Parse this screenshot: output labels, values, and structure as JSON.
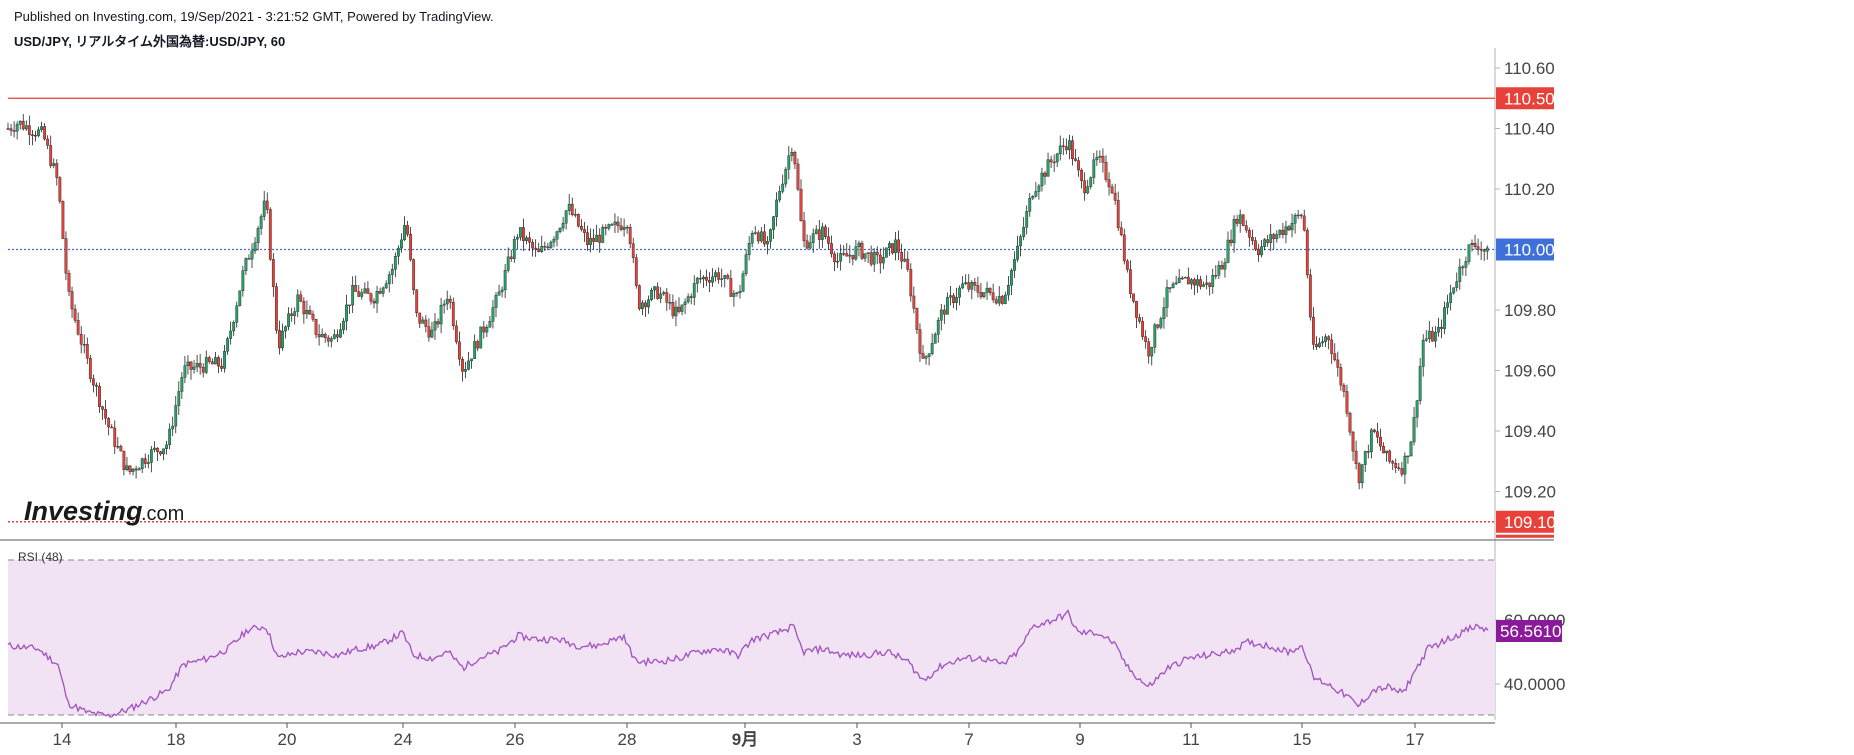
{
  "header": {
    "published": "Published on Investing.com, 19/Sep/2021 - 3:21:52 GMT, Powered by TradingView.",
    "symbol": "USD/JPY, リアルタイム外国為替:USD/JPY, 60"
  },
  "logo": {
    "main": "Investing",
    "suffix": ".com"
  },
  "colors": {
    "up": "#26a269",
    "down": "#e8413a",
    "wick": "#222222",
    "resistance": "#e8413a",
    "support": "#e8413a",
    "current": "#3f6fd8",
    "rsi_line": "#a050c0",
    "rsi_band": "#f1e3f3",
    "rsi_badge": "#8a1a9a"
  },
  "chart_data": {
    "type": "candlestick",
    "symbol": "USD/JPY",
    "interval": "60",
    "y_axis": {
      "ticks": [
        "110.60",
        "110.40",
        "110.20",
        "110.00",
        "109.80",
        "109.60",
        "109.40",
        "109.20"
      ],
      "range": [
        109.06,
        110.68
      ]
    },
    "x_axis": {
      "labels": [
        "14",
        "18",
        "20",
        "24",
        "26",
        "28",
        "9月",
        "3",
        "7",
        "9",
        "11",
        "15",
        "17"
      ]
    },
    "horizontal_lines": [
      {
        "label": "110.50",
        "value": 110.5,
        "style": "solid"
      },
      {
        "label": "109.10",
        "value": 109.1,
        "style": "dotted"
      }
    ],
    "current_price": {
      "label": "110.00",
      "value": 110.0
    },
    "close_anchors": [
      [
        0,
        110.4
      ],
      [
        10,
        110.42
      ],
      [
        35,
        110.38
      ],
      [
        50,
        110.22
      ],
      [
        60,
        109.85
      ],
      [
        80,
        109.62
      ],
      [
        100,
        109.42
      ],
      [
        120,
        109.26
      ],
      [
        140,
        109.32
      ],
      [
        160,
        109.36
      ],
      [
        175,
        109.6
      ],
      [
        200,
        109.62
      ],
      [
        215,
        109.62
      ],
      [
        235,
        109.92
      ],
      [
        258,
        110.16
      ],
      [
        270,
        109.68
      ],
      [
        290,
        109.84
      ],
      [
        310,
        109.72
      ],
      [
        325,
        109.7
      ],
      [
        345,
        109.86
      ],
      [
        365,
        109.84
      ],
      [
        385,
        109.94
      ],
      [
        398,
        110.1
      ],
      [
        408,
        109.78
      ],
      [
        425,
        109.72
      ],
      [
        440,
        109.86
      ],
      [
        455,
        109.6
      ],
      [
        470,
        109.7
      ],
      [
        490,
        109.84
      ],
      [
        510,
        110.06
      ],
      [
        530,
        109.98
      ],
      [
        548,
        110.06
      ],
      [
        560,
        110.14
      ],
      [
        580,
        110.02
      ],
      [
        600,
        110.06
      ],
      [
        620,
        110.1
      ],
      [
        630,
        109.82
      ],
      [
        650,
        109.86
      ],
      [
        670,
        109.78
      ],
      [
        690,
        109.9
      ],
      [
        710,
        109.92
      ],
      [
        730,
        109.84
      ],
      [
        745,
        110.08
      ],
      [
        760,
        110.0
      ],
      [
        770,
        110.18
      ],
      [
        785,
        110.36
      ],
      [
        795,
        110.02
      ],
      [
        815,
        110.06
      ],
      [
        830,
        109.96
      ],
      [
        850,
        110.0
      ],
      [
        870,
        109.96
      ],
      [
        888,
        110.02
      ],
      [
        900,
        109.92
      ],
      [
        915,
        109.62
      ],
      [
        935,
        109.8
      ],
      [
        955,
        109.88
      ],
      [
        975,
        109.86
      ],
      [
        995,
        109.84
      ],
      [
        1010,
        110.0
      ],
      [
        1025,
        110.2
      ],
      [
        1045,
        110.3
      ],
      [
        1060,
        110.36
      ],
      [
        1075,
        110.2
      ],
      [
        1090,
        110.3
      ],
      [
        1105,
        110.2
      ],
      [
        1120,
        109.9
      ],
      [
        1140,
        109.66
      ],
      [
        1160,
        109.86
      ],
      [
        1180,
        109.9
      ],
      [
        1200,
        109.88
      ],
      [
        1215,
        109.96
      ],
      [
        1230,
        110.12
      ],
      [
        1250,
        110.0
      ],
      [
        1265,
        110.04
      ],
      [
        1280,
        110.08
      ],
      [
        1295,
        110.12
      ],
      [
        1305,
        109.66
      ],
      [
        1320,
        109.72
      ],
      [
        1338,
        109.5
      ],
      [
        1350,
        109.24
      ],
      [
        1365,
        109.4
      ],
      [
        1380,
        109.3
      ],
      [
        1395,
        109.28
      ],
      [
        1405,
        109.4
      ],
      [
        1415,
        109.7
      ],
      [
        1430,
        109.72
      ],
      [
        1445,
        109.88
      ],
      [
        1460,
        110.0
      ],
      [
        1470,
        110.02
      ],
      [
        1480,
        109.98
      ]
    ],
    "rsi": {
      "label": "RSI (48)",
      "period": 48,
      "current": "56.5610",
      "ticks": [
        "60.0000",
        "40.0000"
      ],
      "upper_band": 70,
      "lower_band": 30,
      "anchors": [
        [
          0,
          52
        ],
        [
          30,
          51
        ],
        [
          50,
          46
        ],
        [
          60,
          34
        ],
        [
          80,
          31
        ],
        [
          100,
          30
        ],
        [
          120,
          32
        ],
        [
          140,
          35
        ],
        [
          160,
          38
        ],
        [
          175,
          46
        ],
        [
          200,
          48
        ],
        [
          220,
          51
        ],
        [
          240,
          57
        ],
        [
          258,
          58
        ],
        [
          270,
          48
        ],
        [
          290,
          50
        ],
        [
          310,
          50
        ],
        [
          330,
          49
        ],
        [
          350,
          51
        ],
        [
          370,
          52
        ],
        [
          395,
          56
        ],
        [
          405,
          49
        ],
        [
          425,
          48
        ],
        [
          440,
          50
        ],
        [
          455,
          45
        ],
        [
          470,
          48
        ],
        [
          490,
          50
        ],
        [
          510,
          55
        ],
        [
          530,
          54
        ],
        [
          550,
          54
        ],
        [
          570,
          52
        ],
        [
          590,
          52
        ],
        [
          615,
          55
        ],
        [
          628,
          47
        ],
        [
          650,
          47
        ],
        [
          670,
          48
        ],
        [
          690,
          50
        ],
        [
          710,
          51
        ],
        [
          730,
          49
        ],
        [
          745,
          54
        ],
        [
          770,
          56
        ],
        [
          785,
          58
        ],
        [
          795,
          50
        ],
        [
          815,
          51
        ],
        [
          835,
          49
        ],
        [
          855,
          49
        ],
        [
          880,
          50
        ],
        [
          900,
          47
        ],
        [
          915,
          41
        ],
        [
          935,
          46
        ],
        [
          955,
          48
        ],
        [
          975,
          48
        ],
        [
          995,
          46
        ],
        [
          1010,
          50
        ],
        [
          1025,
          58
        ],
        [
          1045,
          60
        ],
        [
          1060,
          62
        ],
        [
          1070,
          56
        ],
        [
          1090,
          56
        ],
        [
          1105,
          53
        ],
        [
          1120,
          45
        ],
        [
          1140,
          39
        ],
        [
          1160,
          45
        ],
        [
          1180,
          48
        ],
        [
          1200,
          49
        ],
        [
          1220,
          50
        ],
        [
          1240,
          53
        ],
        [
          1260,
          52
        ],
        [
          1280,
          50
        ],
        [
          1295,
          52
        ],
        [
          1305,
          42
        ],
        [
          1320,
          40
        ],
        [
          1340,
          36
        ],
        [
          1350,
          33
        ],
        [
          1365,
          38
        ],
        [
          1380,
          39
        ],
        [
          1395,
          37
        ],
        [
          1405,
          43
        ],
        [
          1420,
          51
        ],
        [
          1440,
          54
        ],
        [
          1460,
          57
        ],
        [
          1470,
          58
        ],
        [
          1480,
          56.6
        ]
      ]
    }
  }
}
